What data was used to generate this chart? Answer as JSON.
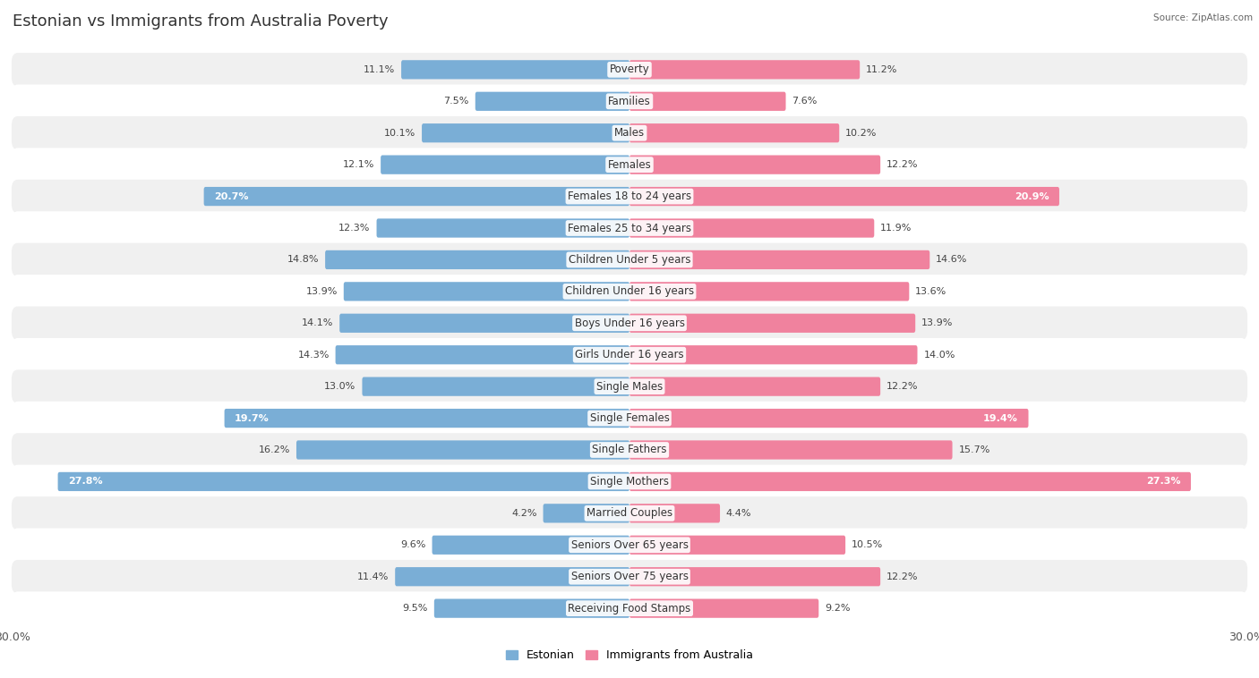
{
  "title": "Estonian vs Immigrants from Australia Poverty",
  "source": "Source: ZipAtlas.com",
  "categories": [
    "Poverty",
    "Families",
    "Males",
    "Females",
    "Females 18 to 24 years",
    "Females 25 to 34 years",
    "Children Under 5 years",
    "Children Under 16 years",
    "Boys Under 16 years",
    "Girls Under 16 years",
    "Single Males",
    "Single Females",
    "Single Fathers",
    "Single Mothers",
    "Married Couples",
    "Seniors Over 65 years",
    "Seniors Over 75 years",
    "Receiving Food Stamps"
  ],
  "estonian": [
    11.1,
    7.5,
    10.1,
    12.1,
    20.7,
    12.3,
    14.8,
    13.9,
    14.1,
    14.3,
    13.0,
    19.7,
    16.2,
    27.8,
    4.2,
    9.6,
    11.4,
    9.5
  ],
  "australia": [
    11.2,
    7.6,
    10.2,
    12.2,
    20.9,
    11.9,
    14.6,
    13.6,
    13.9,
    14.0,
    12.2,
    19.4,
    15.7,
    27.3,
    4.4,
    10.5,
    12.2,
    9.2
  ],
  "estonian_color": "#7aaed6",
  "australia_color": "#f0829e",
  "estonian_label": "Estonian",
  "australia_label": "Immigrants from Australia",
  "max_val": 30.0,
  "bg_color": "#ffffff",
  "row_bg_even": "#f0f0f0",
  "row_bg_odd": "#ffffff",
  "title_fontsize": 13,
  "label_fontsize": 8.5,
  "value_fontsize": 8,
  "threshold_inside": 18
}
